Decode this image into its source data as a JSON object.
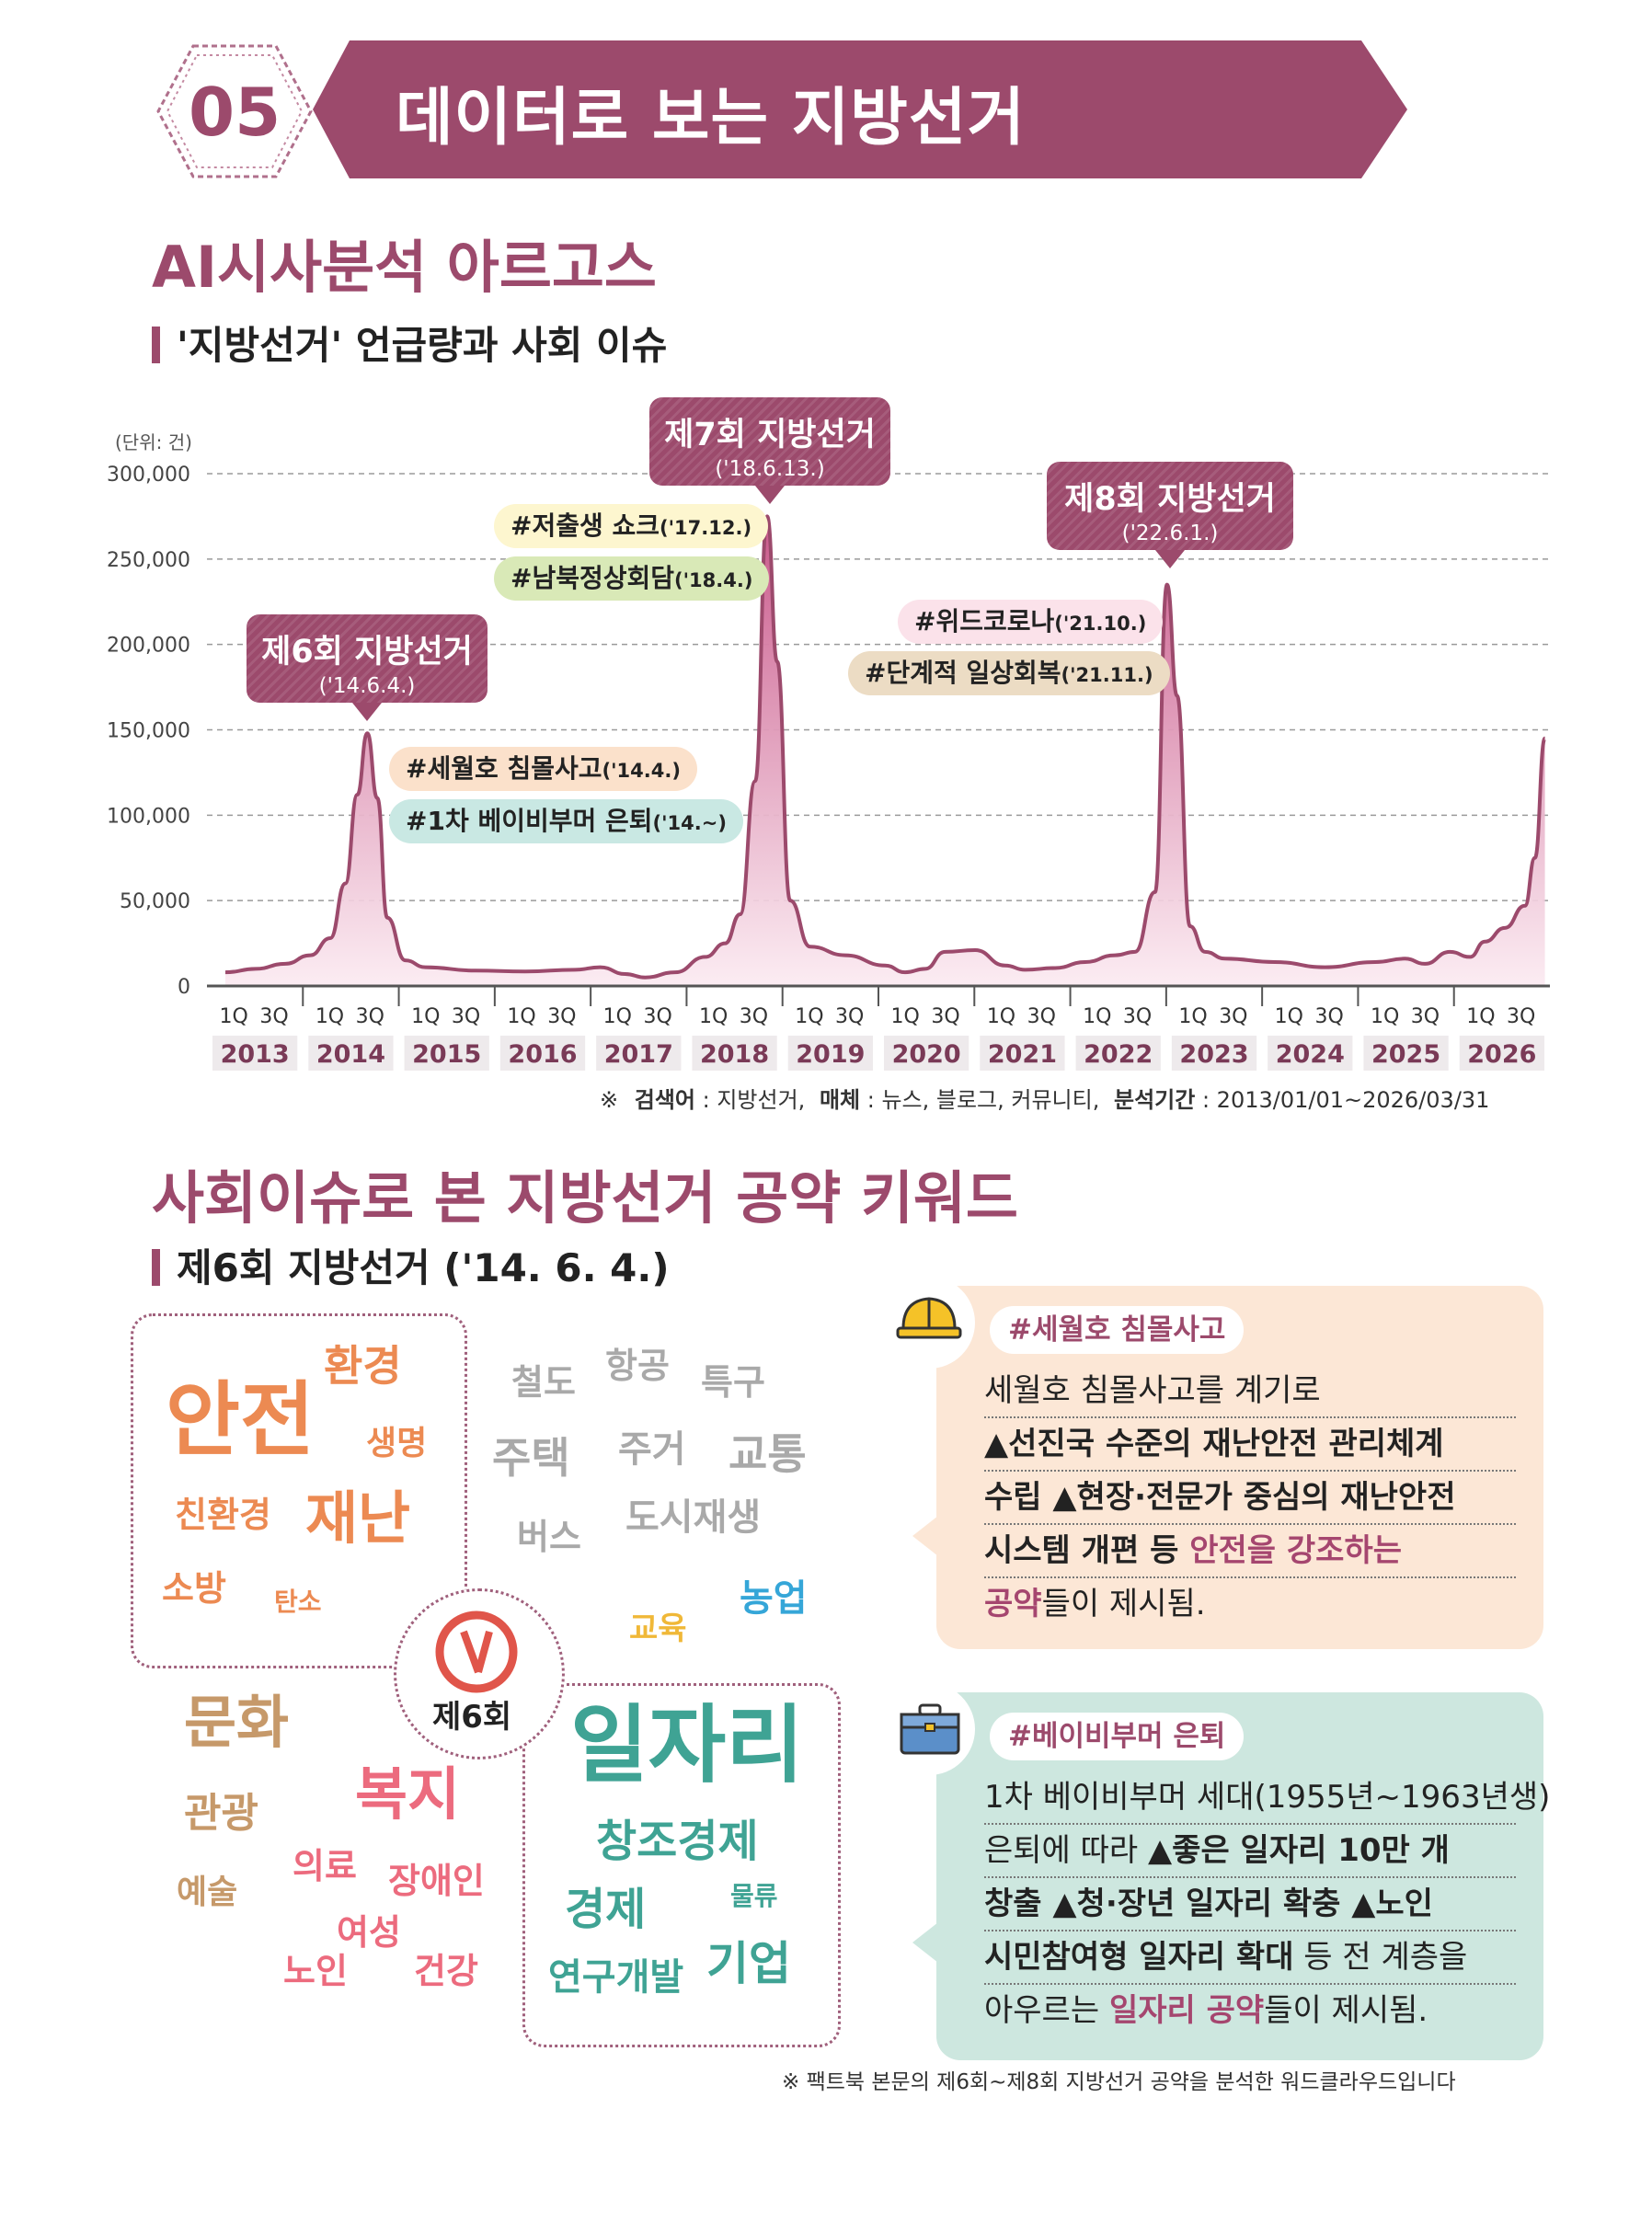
{
  "section": {
    "number": "05",
    "title": "데이터로 보는 지방선거"
  },
  "part1": {
    "title": "AI시사분석 아르고스",
    "subtitle": "'지방선거' 언급량과 사회 이슈"
  },
  "chart_data": {
    "type": "area",
    "unit_label": "(단위: 건)",
    "ylim": [
      0,
      300000
    ],
    "y_ticks": [
      "300,000",
      "250,000",
      "200,000",
      "150,000",
      "100,000",
      "50,000",
      "0"
    ],
    "years": [
      "2013",
      "2014",
      "2015",
      "2016",
      "2017",
      "2018",
      "2019",
      "2020",
      "2021",
      "2022",
      "2023",
      "2024",
      "2025",
      "2026"
    ],
    "quarter_labels": [
      "1Q",
      "3Q"
    ],
    "grid": true,
    "series": [
      {
        "values": [
          [
            2013.0,
            8000
          ],
          [
            2013.3,
            10000
          ],
          [
            2013.6,
            13000
          ],
          [
            2013.85,
            18000
          ],
          [
            2014.05,
            28000
          ],
          [
            2014.2,
            60000
          ],
          [
            2014.32,
            112000
          ],
          [
            2014.42,
            148000
          ],
          [
            2014.52,
            110000
          ],
          [
            2014.62,
            40000
          ],
          [
            2014.8,
            15000
          ],
          [
            2015.0,
            11000
          ],
          [
            2015.5,
            9000
          ],
          [
            2016.0,
            8500
          ],
          [
            2016.5,
            9500
          ],
          [
            2016.75,
            11000
          ],
          [
            2017.0,
            7000
          ],
          [
            2017.2,
            5000
          ],
          [
            2017.5,
            8000
          ],
          [
            2017.8,
            17000
          ],
          [
            2018.0,
            25000
          ],
          [
            2018.15,
            42000
          ],
          [
            2018.3,
            120000
          ],
          [
            2018.42,
            275000
          ],
          [
            2018.52,
            190000
          ],
          [
            2018.65,
            50000
          ],
          [
            2018.85,
            23000
          ],
          [
            2019.2,
            18000
          ],
          [
            2019.6,
            12000
          ],
          [
            2019.8,
            8000
          ],
          [
            2020.0,
            10000
          ],
          [
            2020.2,
            20000
          ],
          [
            2020.5,
            21000
          ],
          [
            2020.8,
            12000
          ],
          [
            2021.0,
            9500
          ],
          [
            2021.3,
            10500
          ],
          [
            2021.6,
            14000
          ],
          [
            2021.9,
            18000
          ],
          [
            2022.1,
            20000
          ],
          [
            2022.3,
            55000
          ],
          [
            2022.42,
            235000
          ],
          [
            2022.52,
            170000
          ],
          [
            2022.65,
            35000
          ],
          [
            2022.8,
            20000
          ],
          [
            2023.0,
            16000
          ],
          [
            2023.5,
            14000
          ],
          [
            2024.0,
            11000
          ],
          [
            2024.5,
            14000
          ],
          [
            2024.8,
            16000
          ],
          [
            2025.0,
            13000
          ],
          [
            2025.25,
            20000
          ],
          [
            2025.45,
            17000
          ],
          [
            2025.6,
            26000
          ],
          [
            2025.8,
            34000
          ],
          [
            2026.0,
            47000
          ],
          [
            2026.1,
            75000
          ],
          [
            2026.2,
            145000
          ]
        ]
      }
    ],
    "annotations": [
      {
        "title": "제6회 지방선거",
        "date": "('14.6.4.)"
      },
      {
        "title": "제7회 지방선거",
        "date": "('18.6.13.)"
      },
      {
        "title": "제8회 지방선거",
        "date": "('22.6.1.)"
      }
    ],
    "issue_tags": [
      {
        "text": "#저출생 쇼크",
        "date": "('17.12.)",
        "color": "#fdf6cf"
      },
      {
        "text": "#남북정상회담",
        "date": "('18.4.)",
        "color": "#d9e9b7"
      },
      {
        "text": "#세월호 침몰사고",
        "date": "('14.4.)",
        "color": "#fbe1cb"
      },
      {
        "text": "#1차 베이비부머 은퇴",
        "date": "('14.~)",
        "color": "#c9e8e3"
      },
      {
        "text": "#위드코로나",
        "date": "('21.10.)",
        "color": "#fbe2ea"
      },
      {
        "text": "#단계적 일상회복",
        "date": "('21.11.)",
        "color": "#ecdcc4"
      }
    ],
    "colors": {
      "line": "#9c4a6c",
      "fill_top": "#c9588a",
      "fill_bottom": "#fbeaf1"
    }
  },
  "chart_note": {
    "mark": "※",
    "label1": "검색어",
    "value1": ": 지방선거,",
    "label2": "매체",
    "value2": ": 뉴스, 블로그, 커뮤니티,",
    "label3": "분석기간",
    "value3": ": 2013/01/01~2026/03/31"
  },
  "part2": {
    "title": "사회이슈로 본 지방선거 공약 키워드",
    "subtitle": "제6회 지방선거 ('14. 6. 4.)"
  },
  "wordcloud": {
    "center": "제6회",
    "words": [
      {
        "text": "안전",
        "color": "#ec8a52"
      },
      {
        "text": "환경",
        "color": "#ec8a52"
      },
      {
        "text": "생명",
        "color": "#ec8a52"
      },
      {
        "text": "친환경",
        "color": "#ec8a52"
      },
      {
        "text": "재난",
        "color": "#ec8a52"
      },
      {
        "text": "소방",
        "color": "#ec8a52"
      },
      {
        "text": "탄소",
        "color": "#ec8a52"
      },
      {
        "text": "철도",
        "color": "#a9a9a9"
      },
      {
        "text": "항공",
        "color": "#a9a9a9"
      },
      {
        "text": "특구",
        "color": "#a9a9a9"
      },
      {
        "text": "주택",
        "color": "#a9a9a9"
      },
      {
        "text": "주거",
        "color": "#a9a9a9"
      },
      {
        "text": "교통",
        "color": "#a9a9a9"
      },
      {
        "text": "버스",
        "color": "#a9a9a9"
      },
      {
        "text": "도시재생",
        "color": "#a9a9a9"
      },
      {
        "text": "교육",
        "color": "#f0b838"
      },
      {
        "text": "농업",
        "color": "#35a6d8"
      },
      {
        "text": "문화",
        "color": "#c6996a"
      },
      {
        "text": "관광",
        "color": "#c6996a"
      },
      {
        "text": "예술",
        "color": "#c6996a"
      },
      {
        "text": "복지",
        "color": "#ec6b7e"
      },
      {
        "text": "의료",
        "color": "#ec6b7e"
      },
      {
        "text": "장애인",
        "color": "#ec6b7e"
      },
      {
        "text": "여성",
        "color": "#ec6b7e"
      },
      {
        "text": "노인",
        "color": "#ec6b7e"
      },
      {
        "text": "건강",
        "color": "#ec6b7e"
      },
      {
        "text": "일자리",
        "color": "#3fa394"
      },
      {
        "text": "창조경제",
        "color": "#3fa394"
      },
      {
        "text": "경제",
        "color": "#3fa394"
      },
      {
        "text": "물류",
        "color": "#3fa394"
      },
      {
        "text": "연구개발",
        "color": "#3fa394"
      },
      {
        "text": "기업",
        "color": "#3fa394"
      }
    ]
  },
  "cards": [
    {
      "tag": "#세월호 침몰사고",
      "icon": "hard-hat-icon",
      "color": "#fce7d6",
      "lines": [
        {
          "a": "세월호 침몰사고를 계기로",
          "b": "",
          "c": ""
        },
        {
          "a": "",
          "b": "▲선진국 수준의 재난안전 관리체계",
          "c": ""
        },
        {
          "a": "",
          "b": "수립 ▲현장·전문가 중심의 재난안전",
          "c": ""
        },
        {
          "a": "",
          "b": "시스템 개편 등 ",
          "c": "안전을 강조하는"
        },
        {
          "hl": "공약",
          "a": "들이 제시됨.",
          "b": "",
          "c": ""
        }
      ]
    },
    {
      "tag": "#베이비부머 은퇴",
      "icon": "briefcase-icon",
      "color": "#cde7df",
      "lines": [
        {
          "a": "1차 베이비부머 세대(1955년~1963년생)",
          "b": "",
          "c": ""
        },
        {
          "a": "은퇴에 따라 ",
          "b": "▲좋은 일자리 10만 개",
          "c": ""
        },
        {
          "a": "",
          "b": "창출 ▲청·장년 일자리 확충 ▲노인",
          "c": ""
        },
        {
          "a": "",
          "b": "시민참여형 일자리 확대",
          "c": " 등 전 계층을"
        },
        {
          "a": "아우르는 ",
          "hl": "일자리 공약",
          "c": "들이 제시됨."
        }
      ]
    }
  ],
  "footer_note": "※  팩트북 본문의 제6회~제8회 지방선거 공약을 분석한 워드클라우드입니다"
}
